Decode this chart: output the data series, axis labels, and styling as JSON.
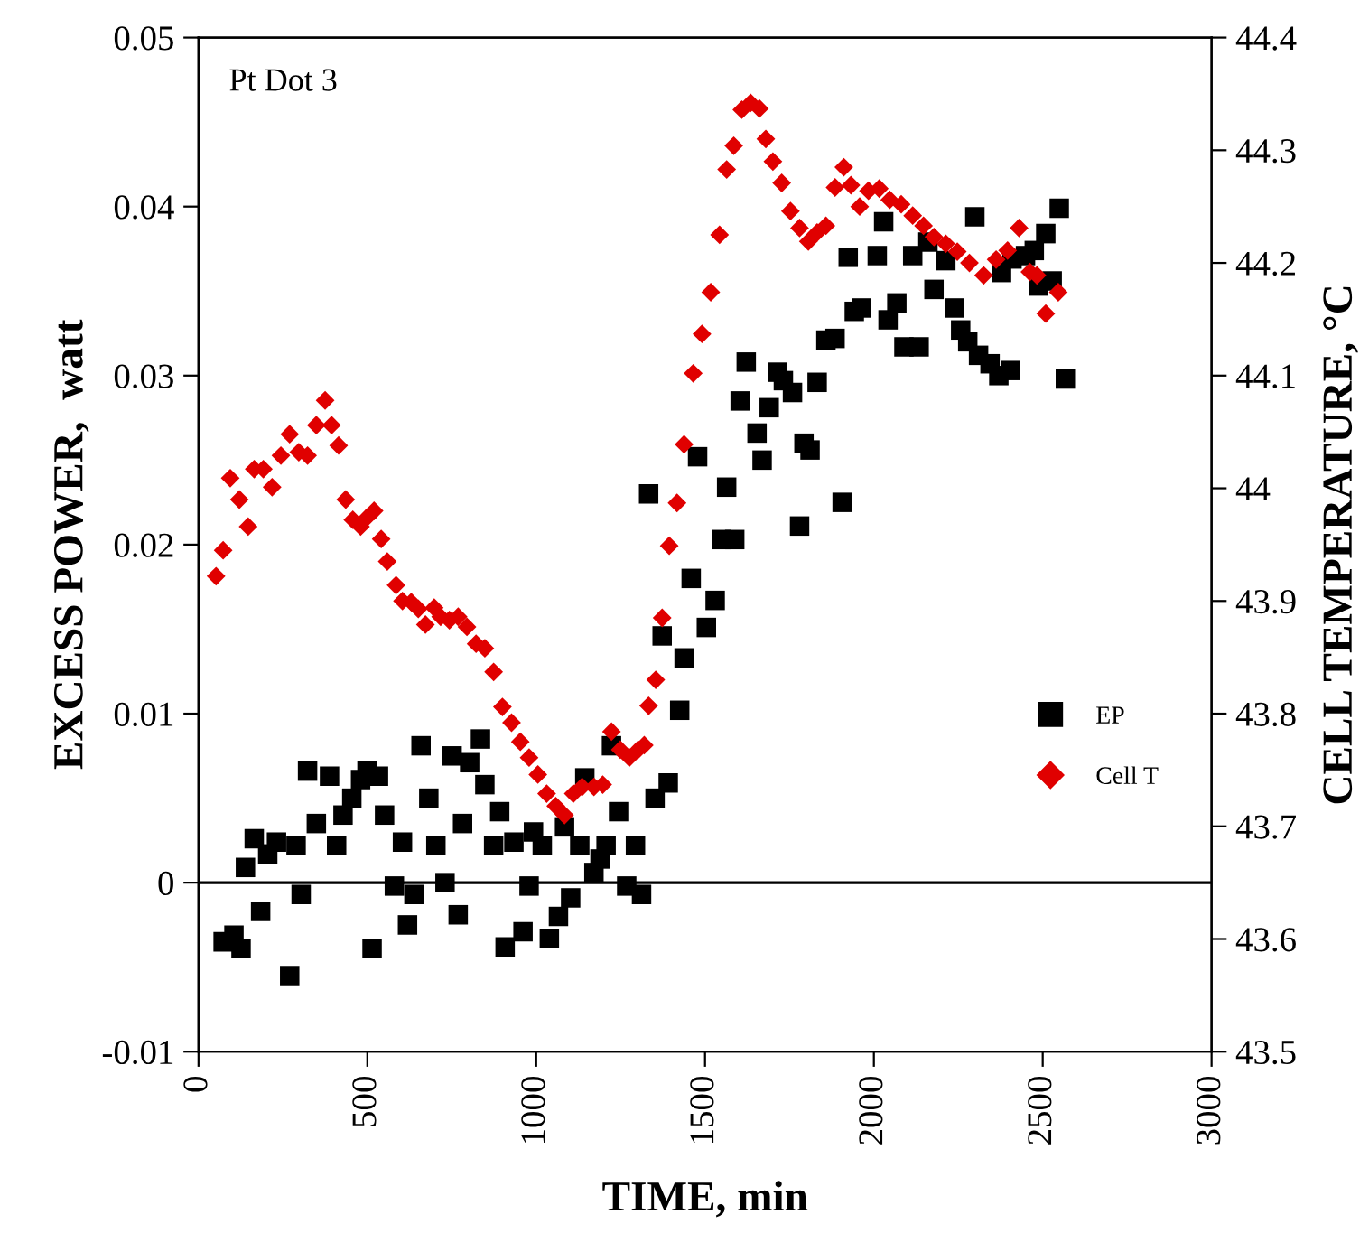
{
  "chart_data": {
    "type": "scatter",
    "xlabel": "TIME, min",
    "ylabel": "EXCESS POWER,  watt",
    "y2label": "CELL TEMPERATURE, °C",
    "annotations": [
      "Pt Dot 3"
    ],
    "xlim": [
      0,
      3000
    ],
    "xticks": [
      0,
      500,
      1000,
      1500,
      2000,
      2500,
      3000
    ],
    "ylim": [
      -0.01,
      0.05
    ],
    "yticks": [
      -0.01,
      0,
      0.01,
      0.02,
      0.03,
      0.04,
      0.05
    ],
    "y2lim": [
      43.5,
      44.4
    ],
    "y2ticks": [
      43.5,
      43.6,
      43.7,
      43.8,
      43.9,
      44,
      44.1,
      44.2,
      44.3,
      44.4
    ],
    "ref_lines": [
      {
        "axis": "y",
        "value": 0,
        "color": "#000000"
      }
    ],
    "legend": "right",
    "grid": false,
    "series": [
      {
        "name": "EP",
        "color": "#000000",
        "marker": "square",
        "x": [
          73,
          105,
          126,
          139,
          165,
          184,
          205,
          231,
          270,
          289,
          304,
          323,
          349,
          388,
          409,
          428,
          454,
          480,
          499,
          514,
          533,
          551,
          580,
          604,
          619,
          638,
          659,
          682,
          703,
          730,
          751,
          769,
          782,
          803,
          835,
          848,
          874,
          892,
          908,
          934,
          961,
          979,
          992,
          1018,
          1039,
          1066,
          1084,
          1102,
          1129,
          1144,
          1171,
          1189,
          1207,
          1223,
          1244,
          1268,
          1294,
          1312,
          1333,
          1352,
          1373,
          1391,
          1425,
          1438,
          1459,
          1478,
          1504,
          1530,
          1549,
          1564,
          1588,
          1604,
          1622,
          1654,
          1669,
          1690,
          1714,
          1732,
          1759,
          1780,
          1793,
          1811,
          1832,
          1858,
          1885,
          1906,
          1924,
          1942,
          1963,
          2010,
          2029,
          2042,
          2068,
          2089,
          2115,
          2134,
          2160,
          2178,
          2213,
          2239,
          2257,
          2278,
          2299,
          2310,
          2344,
          2370,
          2378,
          2404,
          2409,
          2449,
          2475,
          2488,
          2509,
          2528,
          2549,
          2567
        ],
        "values": [
          -0.0035,
          -0.0031,
          -0.0039,
          0.0009,
          0.0026,
          -0.0017,
          0.0017,
          0.0024,
          -0.0055,
          0.0022,
          -0.0007,
          0.0066,
          0.0035,
          0.0063,
          0.0022,
          0.004,
          0.005,
          0.0061,
          0.0066,
          -0.0039,
          0.0063,
          0.004,
          -0.0002,
          0.0024,
          -0.0025,
          -0.0007,
          0.0081,
          0.005,
          0.0022,
          0.0,
          0.0075,
          -0.0019,
          0.0035,
          0.0071,
          0.0085,
          0.0058,
          0.0022,
          0.0042,
          -0.0038,
          0.0024,
          -0.0029,
          -0.0002,
          0.003,
          0.0022,
          -0.0033,
          -0.002,
          0.0033,
          -0.0009,
          0.0022,
          0.0062,
          0.0006,
          0.0014,
          0.0022,
          0.0081,
          0.0042,
          -0.0002,
          0.0022,
          -0.0007,
          0.023,
          0.005,
          0.0146,
          0.0059,
          0.0102,
          0.0133,
          0.018,
          0.0252,
          0.0151,
          0.0167,
          0.0203,
          0.0234,
          0.0203,
          0.0285,
          0.0308,
          0.0266,
          0.025,
          0.0281,
          0.0302,
          0.0297,
          0.029,
          0.0211,
          0.026,
          0.0256,
          0.0296,
          0.0321,
          0.0322,
          0.0225,
          0.037,
          0.0338,
          0.034,
          0.0371,
          0.0391,
          0.0333,
          0.0343,
          0.0317,
          0.0371,
          0.0317,
          0.0379,
          0.0351,
          0.0368,
          0.034,
          0.0327,
          0.032,
          0.0394,
          0.0312,
          0.0307,
          0.03,
          0.0361,
          0.0303,
          0.0369,
          0.0371,
          0.0374,
          0.0353,
          0.0384,
          0.0356,
          0.0399,
          0.0298
        ]
      },
      {
        "name": "Cell T",
        "color": "#e00000",
        "marker": "diamond",
        "axis": "y2",
        "x": [
          52,
          73,
          94,
          121,
          147,
          165,
          192,
          218,
          244,
          270,
          297,
          323,
          349,
          375,
          394,
          415,
          436,
          457,
          480,
          499,
          520,
          541,
          559,
          585,
          604,
          630,
          651,
          672,
          698,
          717,
          743,
          769,
          795,
          822,
          848,
          874,
          900,
          927,
          953,
          979,
          1005,
          1031,
          1058,
          1084,
          1110,
          1136,
          1171,
          1197,
          1223,
          1249,
          1276,
          1302,
          1320,
          1333,
          1354,
          1373,
          1394,
          1417,
          1438,
          1465,
          1491,
          1517,
          1543,
          1564,
          1585,
          1609,
          1635,
          1661,
          1680,
          1701,
          1727,
          1753,
          1780,
          1806,
          1832,
          1858,
          1885,
          1911,
          1932,
          1958,
          1984,
          2016,
          2047,
          2081,
          2115,
          2147,
          2178,
          2213,
          2247,
          2283,
          2325,
          2362,
          2396,
          2430,
          2462,
          2483,
          2509,
          2546
        ],
        "values": [
          43.922,
          43.945,
          44.009,
          43.99,
          43.966,
          44.017,
          44.017,
          44.001,
          44.029,
          44.048,
          44.032,
          44.029,
          44.056,
          44.078,
          44.056,
          44.038,
          43.99,
          43.972,
          43.966,
          43.974,
          43.98,
          43.955,
          43.935,
          43.914,
          43.9,
          43.899,
          43.893,
          43.879,
          43.894,
          43.886,
          43.883,
          43.886,
          43.877,
          43.862,
          43.858,
          43.837,
          43.806,
          43.792,
          43.775,
          43.761,
          43.746,
          43.729,
          43.718,
          43.71,
          43.729,
          43.735,
          43.735,
          43.737,
          43.784,
          43.768,
          43.761,
          43.768,
          43.772,
          43.807,
          43.83,
          43.885,
          43.949,
          43.987,
          44.039,
          44.102,
          44.137,
          44.174,
          44.225,
          44.283,
          44.304,
          44.336,
          44.342,
          44.337,
          44.31,
          44.29,
          44.271,
          44.246,
          44.231,
          44.219,
          44.227,
          44.233,
          44.267,
          44.285,
          44.269,
          44.25,
          44.264,
          44.266,
          44.256,
          44.252,
          44.242,
          44.233,
          44.223,
          44.217,
          44.21,
          44.2,
          44.189,
          44.203,
          44.211,
          44.231,
          44.192,
          44.189,
          44.155,
          44.174
        ]
      }
    ]
  }
}
